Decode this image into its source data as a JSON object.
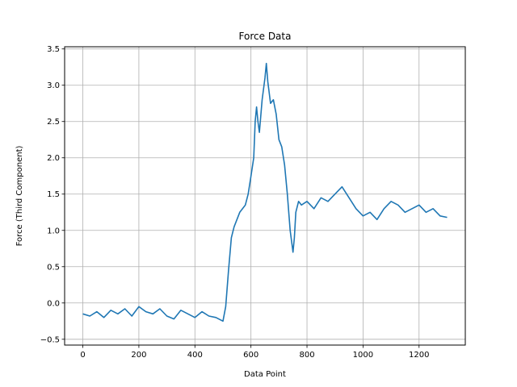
{
  "chart_data": {
    "type": "line",
    "title": "Force Data",
    "xlabel": "Data Point",
    "ylabel": "Force (Third Component)",
    "xlim": [
      -65,
      1365
    ],
    "ylim": [
      -0.58,
      3.53
    ],
    "grid": true,
    "xticks": [
      0,
      200,
      400,
      600,
      800,
      1000,
      1200
    ],
    "xtick_labels": [
      "0",
      "200",
      "400",
      "600",
      "800",
      "1000",
      "1200"
    ],
    "yticks": [
      -0.5,
      0.0,
      0.5,
      1.0,
      1.5,
      2.0,
      2.5,
      3.0,
      3.5
    ],
    "ytick_labels": [
      "−0.5",
      "0.0",
      "0.5",
      "1.0",
      "1.5",
      "2.0",
      "2.5",
      "3.0",
      "3.5"
    ],
    "series": [
      {
        "name": "Force",
        "color": "#1f77b4",
        "x": [
          0,
          25,
          50,
          75,
          100,
          125,
          150,
          175,
          200,
          225,
          250,
          275,
          300,
          325,
          350,
          375,
          400,
          425,
          450,
          475,
          500,
          510,
          520,
          530,
          540,
          550,
          560,
          570,
          580,
          590,
          600,
          610,
          615,
          620,
          625,
          630,
          640,
          650,
          655,
          660,
          670,
          680,
          690,
          700,
          710,
          720,
          730,
          740,
          750,
          755,
          760,
          770,
          780,
          800,
          825,
          850,
          875,
          900,
          925,
          950,
          975,
          1000,
          1025,
          1050,
          1075,
          1100,
          1125,
          1150,
          1175,
          1200,
          1225,
          1250,
          1275,
          1300
        ],
        "y": [
          -0.15,
          -0.18,
          -0.12,
          -0.2,
          -0.1,
          -0.15,
          -0.08,
          -0.18,
          -0.05,
          -0.12,
          -0.15,
          -0.08,
          -0.18,
          -0.22,
          -0.1,
          -0.15,
          -0.2,
          -0.12,
          -0.18,
          -0.2,
          -0.25,
          -0.05,
          0.45,
          0.9,
          1.05,
          1.15,
          1.25,
          1.3,
          1.35,
          1.5,
          1.75,
          2.0,
          2.5,
          2.7,
          2.5,
          2.35,
          2.8,
          3.1,
          3.3,
          3.05,
          2.75,
          2.8,
          2.6,
          2.25,
          2.15,
          1.9,
          1.5,
          1.0,
          0.7,
          0.9,
          1.25,
          1.4,
          1.35,
          1.4,
          1.3,
          1.45,
          1.4,
          1.5,
          1.6,
          1.45,
          1.3,
          1.2,
          1.25,
          1.15,
          1.3,
          1.4,
          1.35,
          1.25,
          1.3,
          1.35,
          1.25,
          1.3,
          1.2,
          1.18
        ]
      }
    ]
  }
}
